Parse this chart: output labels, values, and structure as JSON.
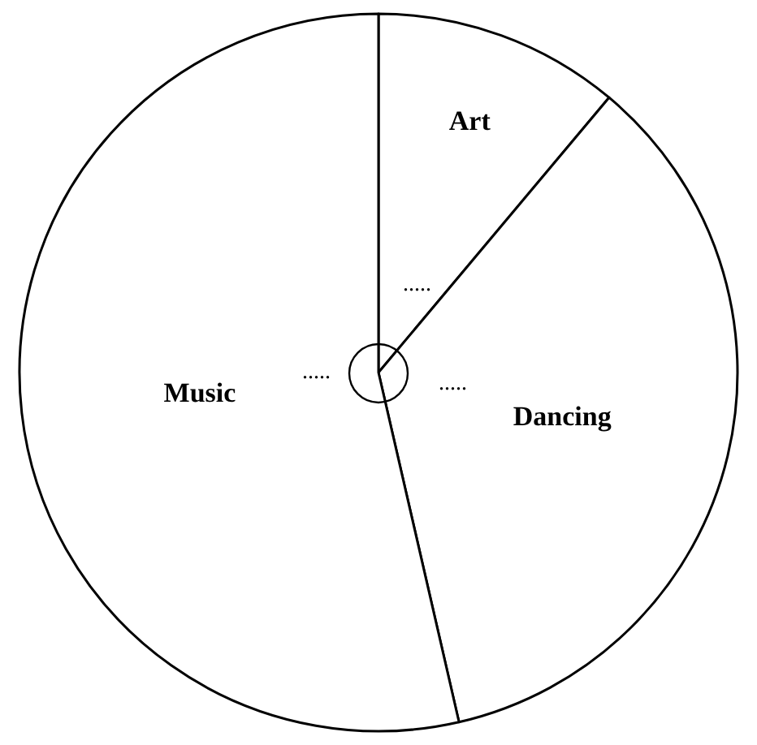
{
  "chart_data": {
    "type": "pie",
    "categories": [
      "Art",
      "Dancing",
      "Music"
    ],
    "values": [
      11.1,
      35.3,
      53.6
    ],
    "colors": [
      "#ffffff",
      "#ffffff",
      "#ffffff"
    ],
    "annotations": [
      ".....",
      ".....",
      "....."
    ],
    "legend": false
  }
}
